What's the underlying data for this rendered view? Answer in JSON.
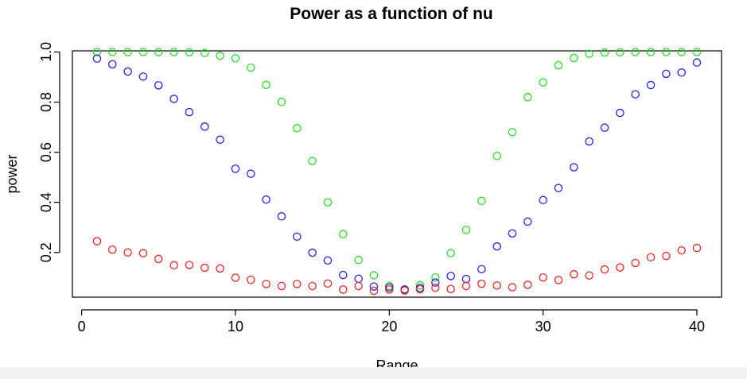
{
  "chart_data": {
    "type": "scatter",
    "title": "Power as a function of nu",
    "xlabel": "Range",
    "ylabel": "power",
    "xlim": [
      -0.6,
      41.6
    ],
    "ylim": [
      0.0215,
      1.0045
    ],
    "xticks": [
      0,
      10,
      20,
      30,
      40
    ],
    "yticks": [
      0.2,
      0.4,
      0.6,
      0.8,
      1.0
    ],
    "xtick_labels": [
      "0",
      "10",
      "20",
      "30",
      "40"
    ],
    "ytick_labels": [
      "0.2",
      "0.4",
      "0.6",
      "0.8",
      "1.0"
    ],
    "grid": false,
    "legend": "none",
    "x": [
      1,
      2,
      3,
      4,
      5,
      6,
      7,
      8,
      9,
      10,
      11,
      12,
      13,
      14,
      15,
      16,
      17,
      18,
      19,
      20,
      21,
      22,
      23,
      24,
      25,
      26,
      27,
      28,
      29,
      30,
      31,
      32,
      33,
      34,
      35,
      36,
      37,
      38,
      39,
      40
    ],
    "series": [
      {
        "color": "#22dd22",
        "values": [
          1.0,
          1.0,
          1.0,
          1.0,
          1.0,
          1.0,
          0.999,
          0.996,
          0.985,
          0.975,
          0.938,
          0.869,
          0.801,
          0.696,
          0.565,
          0.4,
          0.273,
          0.17,
          0.109,
          0.066,
          0.053,
          0.069,
          0.1,
          0.197,
          0.29,
          0.406,
          0.585,
          0.68,
          0.82,
          0.879,
          0.947,
          0.976,
          0.993,
          0.998,
          0.999,
          1.0,
          1.0,
          1.0,
          1.0,
          1.0
        ]
      },
      {
        "color": "#2222ee",
        "values": [
          0.974,
          0.951,
          0.922,
          0.902,
          0.867,
          0.813,
          0.76,
          0.702,
          0.65,
          0.534,
          0.514,
          0.411,
          0.344,
          0.263,
          0.199,
          0.168,
          0.11,
          0.095,
          0.064,
          0.06,
          0.052,
          0.058,
          0.08,
          0.106,
          0.094,
          0.133,
          0.224,
          0.276,
          0.323,
          0.409,
          0.457,
          0.54,
          0.643,
          0.698,
          0.757,
          0.831,
          0.868,
          0.913,
          0.918,
          0.958
        ]
      },
      {
        "color": "#ee2222",
        "values": [
          0.245,
          0.211,
          0.2,
          0.197,
          0.174,
          0.149,
          0.15,
          0.139,
          0.136,
          0.099,
          0.091,
          0.074,
          0.066,
          0.074,
          0.066,
          0.076,
          0.052,
          0.066,
          0.047,
          0.052,
          0.048,
          0.053,
          0.059,
          0.054,
          0.066,
          0.075,
          0.068,
          0.061,
          0.071,
          0.1,
          0.09,
          0.113,
          0.108,
          0.132,
          0.14,
          0.158,
          0.181,
          0.186,
          0.208,
          0.218
        ]
      }
    ]
  }
}
